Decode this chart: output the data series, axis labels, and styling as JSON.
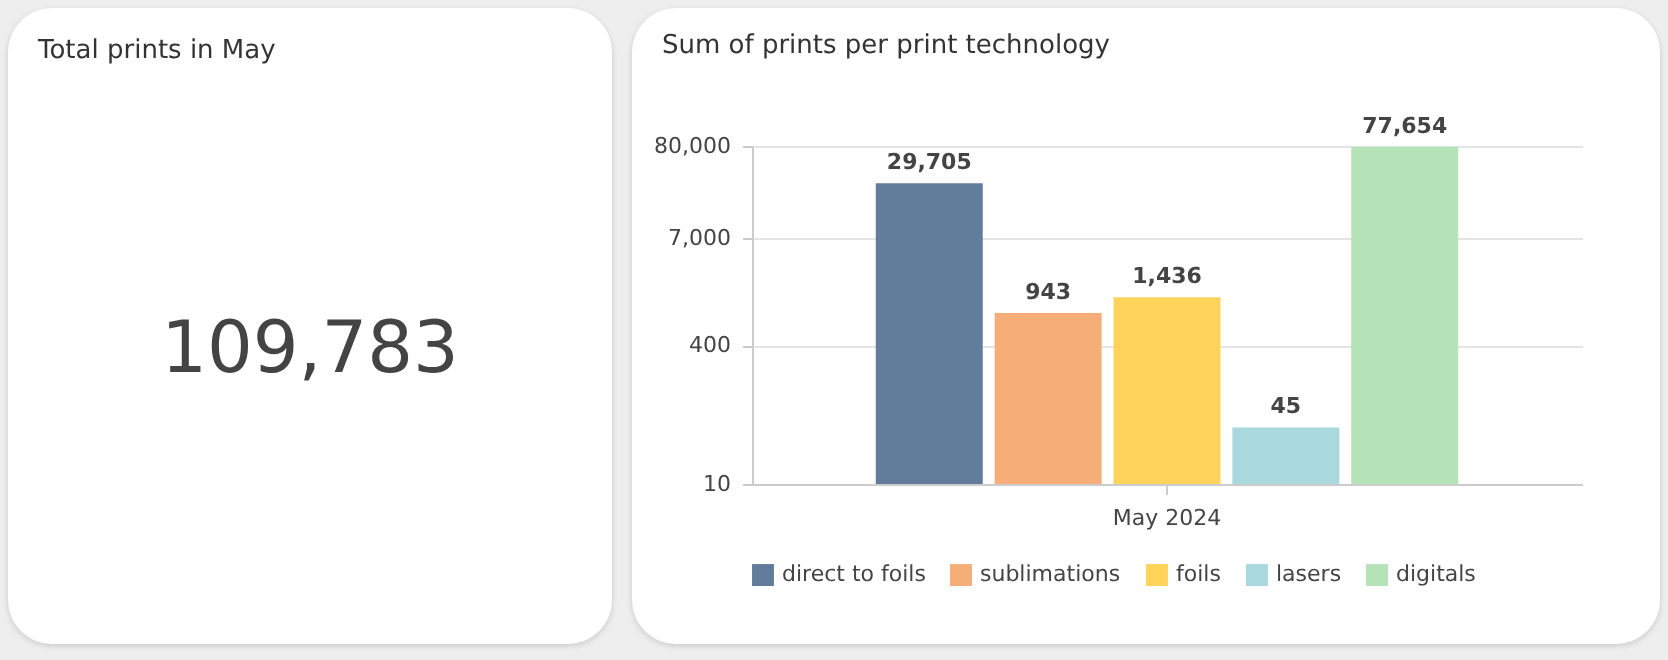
{
  "chart_data": [
    {
      "type": "other",
      "title": "Total prints in May",
      "annotations": [
        "109,783"
      ]
    },
    {
      "type": "bar",
      "title": "Sum of prints per print technology",
      "categories": [
        "May 2024"
      ],
      "log": "y",
      "ylim": [
        10,
        80000
      ],
      "yticks": [
        10,
        400,
        {
          "value": 7000,
          "label": "7,000"
        },
        {
          "value": 80000,
          "label": "80,000"
        }
      ],
      "grid": "y",
      "legend": "bottom",
      "series": [
        {
          "name": "direct to foils",
          "color": "#627c9c",
          "values": [
            29705
          ],
          "value_labels": [
            "29,705"
          ]
        },
        {
          "name": "sublimations",
          "color": "#f6ae78",
          "values": [
            943
          ],
          "value_labels": [
            "943"
          ]
        },
        {
          "name": "foils",
          "color": "#fed35a",
          "values": [
            1436
          ],
          "value_labels": [
            "1,436"
          ]
        },
        {
          "name": "lasers",
          "color": "#a9d9dc",
          "values": [
            45
          ],
          "value_labels": [
            "45"
          ]
        },
        {
          "name": "digitals",
          "color": "#b6e2b8",
          "values": [
            77654
          ],
          "value_labels": [
            "77,654"
          ]
        }
      ]
    }
  ]
}
